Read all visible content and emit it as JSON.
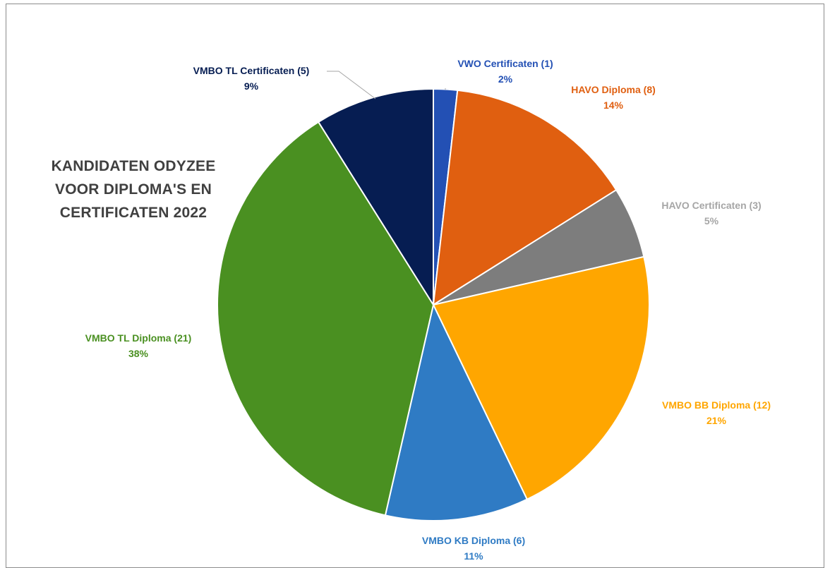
{
  "chart_data": {
    "type": "pie",
    "title_lines": [
      "KANDIDATEN ODYZEE",
      "VOOR DIPLOMA'S EN",
      "CERTIFICATEN 2022"
    ],
    "slices": [
      {
        "name": "VWO Certificaten",
        "count_label": "VWO Certificaten (1)",
        "value": 1,
        "percent_label": "2%",
        "color": "#2350b4"
      },
      {
        "name": "HAVO Diploma",
        "count_label": "HAVO Diploma (8)",
        "value": 8,
        "percent_label": "14%",
        "color": "#e05f10"
      },
      {
        "name": "HAVO Certificaten",
        "count_label": "HAVO Certificaten (3)",
        "value": 3,
        "percent_label": "5%",
        "color": "#7d7d7d"
      },
      {
        "name": "VMBO BB Diploma",
        "count_label": "VMBO BB Diploma (12)",
        "value": 12,
        "percent_label": "21%",
        "color": "#ffa600"
      },
      {
        "name": "VMBO KB Diploma",
        "count_label": "VMBO KB Diploma (6)",
        "value": 6,
        "percent_label": "11%",
        "color": "#2f7bc4"
      },
      {
        "name": "VMBO TL Diploma",
        "count_label": "VMBO TL Diploma (21)",
        "value": 21,
        "percent_label": "38%",
        "color": "#4a9021"
      },
      {
        "name": "VMBO TL Certificaten",
        "count_label": "VMBO TL Certificaten (5)",
        "value": 5,
        "percent_label": "9%",
        "color": "#061d52"
      }
    ],
    "label_colors": [
      "#2350b4",
      "#e05f10",
      "#a6a6a6",
      "#ffa600",
      "#2f7bc4",
      "#4a9021",
      "#061d52"
    ],
    "legend": "none",
    "start_angle": "12 o'clock",
    "direction": "clockwise"
  }
}
